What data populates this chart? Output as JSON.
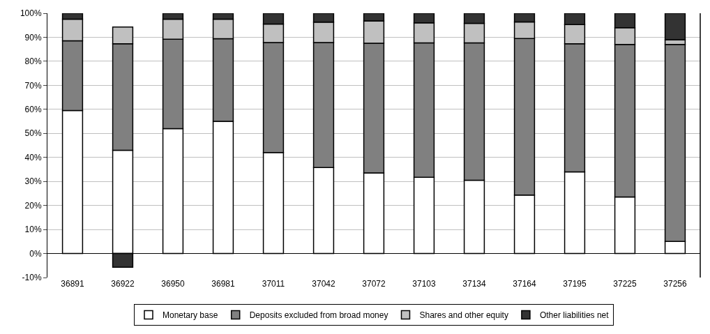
{
  "chart_data": {
    "type": "bar",
    "stacked": true,
    "categories": [
      "36891",
      "36922",
      "36950",
      "36981",
      "37011",
      "37042",
      "37072",
      "37103",
      "37134",
      "37164",
      "37195",
      "37225",
      "37256"
    ],
    "series": [
      {
        "name": "Monetary base",
        "color": "#ffffff",
        "values": [
          59.5,
          43,
          52,
          55,
          42,
          35.8,
          33.5,
          31.7,
          30.5,
          24.3,
          34,
          23.5,
          5
        ]
      },
      {
        "name": "Deposits excluded from broad money",
        "color": "#808080",
        "values": [
          29,
          44.3,
          37.2,
          34.4,
          45.8,
          52,
          54,
          56,
          57.2,
          65.2,
          53.3,
          63.5,
          82
        ]
      },
      {
        "name": "Shares and other equity",
        "color": "#c0c0c0",
        "values": [
          9,
          7,
          8.3,
          8.1,
          7.7,
          8.5,
          9.3,
          8.3,
          8.1,
          6.9,
          8,
          7,
          2
        ]
      },
      {
        "name": "Other liabilities net",
        "color": "#333333",
        "values": [
          2.5,
          -5.7,
          2.5,
          2.5,
          4.5,
          3.7,
          3.2,
          4,
          4.2,
          3.6,
          4.7,
          6,
          11
        ]
      }
    ],
    "ylim": [
      -10,
      100
    ],
    "yticks": [
      {
        "value": -10,
        "label": "-10%"
      },
      {
        "value": 0,
        "label": "0%"
      },
      {
        "value": 10,
        "label": "10%"
      },
      {
        "value": 20,
        "label": "20%"
      },
      {
        "value": 30,
        "label": "30%"
      },
      {
        "value": 40,
        "label": "40%"
      },
      {
        "value": 50,
        "label": "50%"
      },
      {
        "value": 60,
        "label": "60%"
      },
      {
        "value": 70,
        "label": "70%"
      },
      {
        "value": 80,
        "label": "80%"
      },
      {
        "value": 90,
        "label": "90%"
      },
      {
        "value": 100,
        "label": "100%"
      }
    ],
    "grid": "y",
    "legend": "bottom"
  }
}
